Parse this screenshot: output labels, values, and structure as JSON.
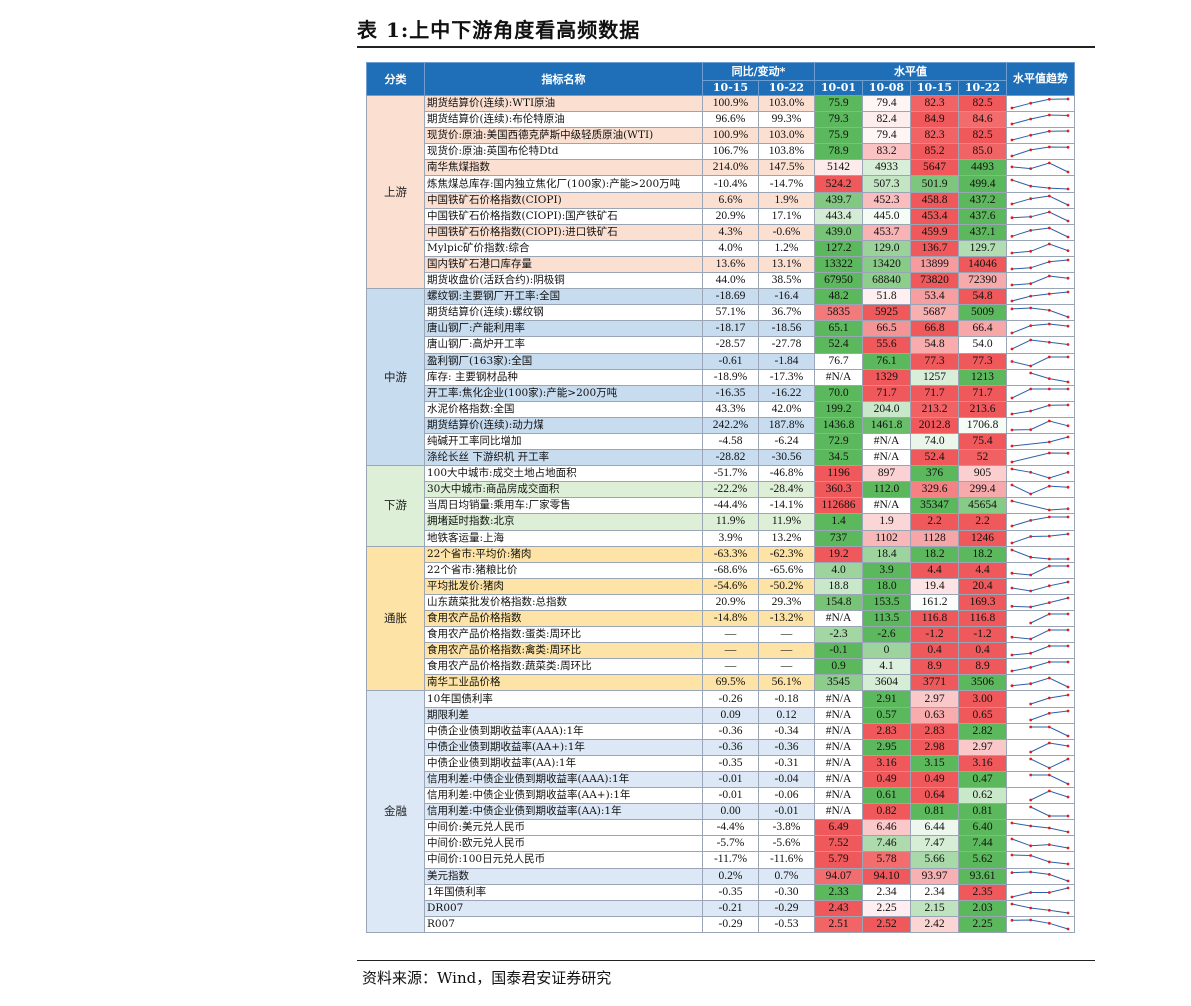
{
  "title": "表 1:上中下游角度看高频数据",
  "source": "资料来源：Wind，国泰君安证券研究",
  "headers": {
    "category": "分类",
    "name": "指标名称",
    "yoy_group": "同比/变动*",
    "level_group": "水平值",
    "trend": "水平值趋势",
    "yoy_dates": [
      "10-15",
      "10-22"
    ],
    "level_dates": [
      "10-01",
      "10-08",
      "10-15",
      "10-22"
    ]
  },
  "colors": {
    "header_bg": "#1f6fb8",
    "up_bg": "#fbe0d2",
    "mid_bg": "#c8dcf0",
    "down_bg": "#ddefd6",
    "infl_bg": "#fde3a5",
    "fin_bg": "#dce8f5",
    "high_red": "#f0595b",
    "low_green": "#5cb85c",
    "trend_line": "#2e5fa8",
    "trend_dot": "#e02020"
  },
  "groups": [
    {
      "category": "上游",
      "tone": "up",
      "rows": [
        {
          "name": "期货结算价(连续):WTI原油",
          "hl": true,
          "yoy": [
            "100.9%",
            "103.0%"
          ],
          "levels": [
            "75.9",
            "79.4",
            "82.3",
            "82.5"
          ]
        },
        {
          "name": "期货结算价(连续):布伦特原油",
          "hl": false,
          "yoy": [
            "96.6%",
            "99.3%"
          ],
          "levels": [
            "79.3",
            "82.4",
            "84.9",
            "84.6"
          ]
        },
        {
          "name": "现货价:原油:美国西德克萨斯中级轻质原油(WTI)",
          "hl": true,
          "yoy": [
            "100.9%",
            "103.0%"
          ],
          "levels": [
            "75.9",
            "79.4",
            "82.3",
            "82.5"
          ]
        },
        {
          "name": "现货价:原油:英国布伦特Dtd",
          "hl": false,
          "yoy": [
            "106.7%",
            "103.8%"
          ],
          "levels": [
            "78.9",
            "83.2",
            "85.2",
            "85.0"
          ]
        },
        {
          "name": "南华焦煤指数",
          "hl": true,
          "yoy": [
            "214.0%",
            "147.5%"
          ],
          "levels": [
            "5142",
            "4933",
            "5647",
            "4493"
          ]
        },
        {
          "name": "炼焦煤总库存:国内独立焦化厂(100家):产能>200万吨",
          "hl": false,
          "yoy": [
            "-10.4%",
            "-14.7%"
          ],
          "levels": [
            "524.2",
            "507.3",
            "501.9",
            "499.4"
          ]
        },
        {
          "name": "中国铁矿石价格指数(CIOPI)",
          "hl": true,
          "yoy": [
            "6.6%",
            "1.9%"
          ],
          "levels": [
            "439.7",
            "452.3",
            "458.8",
            "437.2"
          ]
        },
        {
          "name": "中国铁矿石价格指数(CIOPI):国产铁矿石",
          "hl": false,
          "yoy": [
            "20.9%",
            "17.1%"
          ],
          "levels": [
            "443.4",
            "445.0",
            "453.4",
            "437.6"
          ]
        },
        {
          "name": "中国铁矿石价格指数(CIOPI):进口铁矿石",
          "hl": true,
          "yoy": [
            "4.3%",
            "-0.6%"
          ],
          "levels": [
            "439.0",
            "453.7",
            "459.9",
            "437.1"
          ]
        },
        {
          "name": "Mylpic矿价指数:综合",
          "hl": false,
          "yoy": [
            "4.0%",
            "1.2%"
          ],
          "levels": [
            "127.2",
            "129.0",
            "136.7",
            "129.7"
          ]
        },
        {
          "name": "国内铁矿石港口库存量",
          "hl": true,
          "yoy": [
            "13.6%",
            "13.1%"
          ],
          "levels": [
            "13322",
            "13420",
            "13899",
            "14046"
          ]
        },
        {
          "name": "期货收盘价(活跃合约):阴极铜",
          "hl": false,
          "yoy": [
            "44.0%",
            "38.5%"
          ],
          "levels": [
            "67950",
            "68840",
            "73820",
            "72390"
          ]
        }
      ]
    },
    {
      "category": "中游",
      "tone": "mid",
      "rows": [
        {
          "name": "螺纹钢:主要钢厂开工率:全国",
          "hl": true,
          "yoy": [
            "-18.69",
            "-16.4"
          ],
          "levels": [
            "48.2",
            "51.8",
            "53.4",
            "54.8"
          ]
        },
        {
          "name": "期货结算价(连续):螺纹钢",
          "hl": false,
          "yoy": [
            "57.1%",
            "36.7%"
          ],
          "levels": [
            "5835",
            "5925",
            "5687",
            "5009"
          ]
        },
        {
          "name": "唐山钢厂:产能利用率",
          "hl": true,
          "yoy": [
            "-18.17",
            "-18.56"
          ],
          "levels": [
            "65.1",
            "66.5",
            "66.8",
            "66.4"
          ]
        },
        {
          "name": "唐山钢厂:高炉开工率",
          "hl": false,
          "yoy": [
            "-28.57",
            "-27.78"
          ],
          "levels": [
            "52.4",
            "55.6",
            "54.8",
            "54.0"
          ]
        },
        {
          "name": "盈利钢厂(163家):全国",
          "hl": true,
          "yoy": [
            "-0.61",
            "-1.84"
          ],
          "levels": [
            "76.7",
            "76.1",
            "77.3",
            "77.3"
          ]
        },
        {
          "name": "库存: 主要钢材品种",
          "hl": false,
          "yoy": [
            "-18.9%",
            "-17.3%"
          ],
          "levels": [
            "#N/A",
            "1329",
            "1257",
            "1213"
          ]
        },
        {
          "name": "开工率:焦化企业(100家):产能>200万吨",
          "hl": true,
          "yoy": [
            "-16.35",
            "-16.22"
          ],
          "levels": [
            "70.0",
            "71.7",
            "71.7",
            "71.7"
          ]
        },
        {
          "name": "水泥价格指数:全国",
          "hl": false,
          "yoy": [
            "43.3%",
            "42.0%"
          ],
          "levels": [
            "199.2",
            "204.0",
            "213.2",
            "213.6"
          ]
        },
        {
          "name": "期货结算价(连续):动力煤",
          "hl": true,
          "yoy": [
            "242.2%",
            "187.8%"
          ],
          "levels": [
            "1436.8",
            "1461.8",
            "2012.8",
            "1706.8"
          ]
        },
        {
          "name": "纯碱开工率同比增加",
          "hl": false,
          "yoy": [
            "-4.58",
            "-6.24"
          ],
          "levels": [
            "72.9",
            "#N/A",
            "74.0",
            "75.4"
          ]
        },
        {
          "name": "涤纶长丝 下游织机 开工率",
          "hl": true,
          "yoy": [
            "-28.82",
            "-30.56"
          ],
          "levels": [
            "34.5",
            "#N/A",
            "52.4",
            "52"
          ]
        }
      ]
    },
    {
      "category": "下游",
      "tone": "down",
      "rows": [
        {
          "name": "100大中城市:成交土地占地面积",
          "hl": false,
          "yoy": [
            "-51.7%",
            "-46.8%"
          ],
          "levels": [
            "1196",
            "897",
            "376",
            "905"
          ]
        },
        {
          "name": "30大中城市:商品房成交面积",
          "hl": true,
          "yoy": [
            "-22.2%",
            "-28.4%"
          ],
          "levels": [
            "360.3",
            "112.0",
            "329.6",
            "299.4"
          ]
        },
        {
          "name": "当周日均销量:乘用车:厂家零售",
          "hl": false,
          "yoy": [
            "-44.4%",
            "-14.1%"
          ],
          "levels": [
            "112686",
            "#N/A",
            "35347",
            "45654"
          ]
        },
        {
          "name": "拥堵延时指数:北京",
          "hl": true,
          "yoy": [
            "11.9%",
            "11.9%"
          ],
          "levels": [
            "1.4",
            "1.9",
            "2.2",
            "2.2"
          ]
        },
        {
          "name": "地铁客运量:上海",
          "hl": false,
          "yoy": [
            "3.9%",
            "13.2%"
          ],
          "levels": [
            "737",
            "1102",
            "1128",
            "1246"
          ]
        }
      ]
    },
    {
      "category": "通胀",
      "tone": "infl",
      "rows": [
        {
          "name": "22个省市:平均价:猪肉",
          "hl": true,
          "yoy": [
            "-63.3%",
            "-62.3%"
          ],
          "levels": [
            "19.2",
            "18.4",
            "18.2",
            "18.2"
          ]
        },
        {
          "name": "22个省市:猪粮比价",
          "hl": false,
          "yoy": [
            "-68.6%",
            "-65.6%"
          ],
          "levels": [
            "4.0",
            "3.9",
            "4.4",
            "4.4"
          ]
        },
        {
          "name": "平均批发价:猪肉",
          "hl": true,
          "yoy": [
            "-54.6%",
            "-50.2%"
          ],
          "levels": [
            "18.8",
            "18.0",
            "19.4",
            "20.4"
          ]
        },
        {
          "name": "山东蔬菜批发价格指数:总指数",
          "hl": false,
          "yoy": [
            "20.9%",
            "29.3%"
          ],
          "levels": [
            "154.8",
            "153.5",
            "161.2",
            "169.3"
          ]
        },
        {
          "name": "食用农产品价格指数",
          "hl": true,
          "yoy": [
            "-14.8%",
            "-13.2%"
          ],
          "levels": [
            "#N/A",
            "113.5",
            "116.8",
            "116.8"
          ]
        },
        {
          "name": "食用农产品价格指数:蛋类:周环比",
          "hl": false,
          "yoy": [
            "—",
            "—"
          ],
          "levels": [
            "-2.3",
            "-2.6",
            "-1.2",
            "-1.2"
          ]
        },
        {
          "name": "食用农产品价格指数:禽类:周环比",
          "hl": true,
          "yoy": [
            "—",
            "—"
          ],
          "levels": [
            "-0.1",
            "0",
            "0.4",
            "0.4"
          ]
        },
        {
          "name": "食用农产品价格指数:蔬菜类:周环比",
          "hl": false,
          "yoy": [
            "—",
            "—"
          ],
          "levels": [
            "0.9",
            "4.1",
            "8.9",
            "8.9"
          ]
        },
        {
          "name": "南华工业品价格",
          "hl": true,
          "yoy": [
            "69.5%",
            "56.1%"
          ],
          "levels": [
            "3545",
            "3604",
            "3771",
            "3506"
          ]
        }
      ]
    },
    {
      "category": "金融",
      "tone": "fin",
      "rows": [
        {
          "name": "10年国债利率",
          "hl": false,
          "yoy": [
            "-0.26",
            "-0.18"
          ],
          "levels": [
            "#N/A",
            "2.91",
            "2.97",
            "3.00"
          ]
        },
        {
          "name": "期限利差",
          "hl": true,
          "yoy": [
            "0.09",
            "0.12"
          ],
          "levels": [
            "#N/A",
            "0.57",
            "0.63",
            "0.65"
          ]
        },
        {
          "name": "中债企业债到期收益率(AAA):1年",
          "hl": false,
          "yoy": [
            "-0.36",
            "-0.34"
          ],
          "levels": [
            "#N/A",
            "2.83",
            "2.83",
            "2.82"
          ]
        },
        {
          "name": "中债企业债到期收益率(AA+):1年",
          "hl": true,
          "yoy": [
            "-0.36",
            "-0.36"
          ],
          "levels": [
            "#N/A",
            "2.95",
            "2.98",
            "2.97"
          ]
        },
        {
          "name": "中债企业债到期收益率(AA):1年",
          "hl": false,
          "yoy": [
            "-0.35",
            "-0.31"
          ],
          "levels": [
            "#N/A",
            "3.16",
            "3.15",
            "3.16"
          ]
        },
        {
          "name": "信用利差:中债企业债到期收益率(AAA):1年",
          "hl": true,
          "yoy": [
            "-0.01",
            "-0.04"
          ],
          "levels": [
            "#N/A",
            "0.49",
            "0.49",
            "0.47"
          ]
        },
        {
          "name": "信用利差:中债企业债到期收益率(AA+):1年",
          "hl": false,
          "yoy": [
            "-0.01",
            "-0.06"
          ],
          "levels": [
            "#N/A",
            "0.61",
            "0.64",
            "0.62"
          ]
        },
        {
          "name": "信用利差:中债企业债到期收益率(AA):1年",
          "hl": true,
          "yoy": [
            "0.00",
            "-0.01"
          ],
          "levels": [
            "#N/A",
            "0.82",
            "0.81",
            "0.81"
          ]
        },
        {
          "name": "中间价:美元兑人民币",
          "hl": false,
          "yoy": [
            "-4.4%",
            "-3.8%"
          ],
          "levels": [
            "6.49",
            "6.46",
            "6.44",
            "6.40"
          ]
        },
        {
          "name": "中间价:欧元兑人民币",
          "hl": false,
          "yoy": [
            "-5.7%",
            "-5.6%"
          ],
          "levels": [
            "7.52",
            "7.46",
            "7.47",
            "7.44"
          ]
        },
        {
          "name": "中间价:100日元兑人民币",
          "hl": false,
          "yoy": [
            "-11.7%",
            "-11.6%"
          ],
          "levels": [
            "5.79",
            "5.78",
            "5.66",
            "5.62"
          ]
        },
        {
          "name": "美元指数",
          "hl": true,
          "yoy": [
            "0.2%",
            "0.7%"
          ],
          "levels": [
            "94.07",
            "94.10",
            "93.97",
            "93.61"
          ]
        },
        {
          "name": "1年国债利率",
          "hl": false,
          "yoy": [
            "-0.35",
            "-0.30"
          ],
          "levels": [
            "2.33",
            "2.34",
            "2.34",
            "2.35"
          ]
        },
        {
          "name": "DR007",
          "hl": true,
          "yoy": [
            "-0.21",
            "-0.29"
          ],
          "levels": [
            "2.43",
            "2.25",
            "2.15",
            "2.03"
          ]
        },
        {
          "name": "R007",
          "hl": false,
          "yoy": [
            "-0.29",
            "-0.53"
          ],
          "levels": [
            "2.51",
            "2.52",
            "2.42",
            "2.25"
          ]
        }
      ]
    }
  ]
}
